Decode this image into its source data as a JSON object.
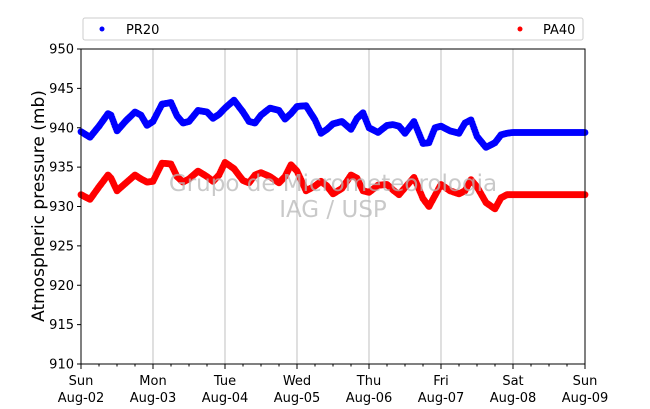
{
  "chart_data": {
    "type": "scatter",
    "ylabel": "Atmospheric pressure (mb)",
    "ylim": [
      910,
      950
    ],
    "y_ticks": [
      910,
      915,
      920,
      925,
      930,
      935,
      940,
      945,
      950
    ],
    "x_range_hours": [
      0,
      168
    ],
    "x_ticks": [
      {
        "day": "Sun",
        "date": "Aug-02"
      },
      {
        "day": "Mon",
        "date": "Aug-03"
      },
      {
        "day": "Tue",
        "date": "Aug-04"
      },
      {
        "day": "Wed",
        "date": "Aug-05"
      },
      {
        "day": "Thu",
        "date": "Aug-06"
      },
      {
        "day": "Fri",
        "date": "Aug-07"
      },
      {
        "day": "Sat",
        "date": "Aug-08"
      },
      {
        "day": "Sun",
        "date": "Aug-09"
      }
    ],
    "grid": "vertical",
    "legend_position": "top",
    "watermark": [
      "Grupo de Micrometeorologia",
      "IAG / USP"
    ],
    "series": [
      {
        "name": "PR20",
        "color": "#0000ff",
        "x": [
          0,
          3,
          6,
          9,
          10,
          12,
          15,
          18,
          20,
          22,
          24,
          27,
          30,
          32,
          34,
          36,
          39,
          42,
          44,
          46,
          48,
          51,
          54,
          56,
          58,
          60,
          63,
          66,
          68,
          70,
          72,
          75,
          78,
          80,
          82,
          84,
          87,
          90,
          92,
          94,
          96,
          99,
          102,
          104,
          106,
          108,
          111,
          114,
          116,
          118,
          120,
          123,
          126,
          128,
          130,
          132,
          135,
          138,
          140,
          142,
          144,
          147,
          150,
          152,
          154,
          156,
          159,
          162,
          164,
          166,
          168
        ],
        "values": [
          939.5,
          938.8,
          940.2,
          941.8,
          941.6,
          939.6,
          940.9,
          942.0,
          941.6,
          940.3,
          940.8,
          943.0,
          943.2,
          941.5,
          940.6,
          940.8,
          942.2,
          942.0,
          941.2,
          941.7,
          942.5,
          943.5,
          942.0,
          940.8,
          940.6,
          941.6,
          942.5,
          942.2,
          941.1,
          941.8,
          942.7,
          942.8,
          941.0,
          939.3,
          939.8,
          940.5,
          940.8,
          939.8,
          941.2,
          941.9,
          940.0,
          939.4,
          940.3,
          940.4,
          940.2,
          939.3,
          940.8,
          938.0,
          938.1,
          940.0,
          940.2,
          939.6,
          939.3,
          940.6,
          941.0,
          938.9,
          937.5,
          938.1,
          939.1,
          939.3,
          939.4,
          939.4,
          939.4,
          939.4,
          939.4,
          939.4,
          939.4,
          939.4,
          939.4,
          939.4,
          939.4
        ]
      },
      {
        "name": "PA40",
        "color": "#ff0000",
        "x": [
          0,
          3,
          6,
          9,
          10,
          12,
          15,
          18,
          20,
          22,
          24,
          27,
          30,
          32,
          34,
          36,
          39,
          42,
          44,
          46,
          48,
          51,
          54,
          56,
          58,
          60,
          63,
          66,
          68,
          70,
          72,
          75,
          78,
          80,
          82,
          84,
          87,
          90,
          92,
          94,
          96,
          99,
          102,
          104,
          106,
          108,
          111,
          114,
          116,
          118,
          120,
          123,
          126,
          128,
          130,
          132,
          135,
          138,
          140,
          142,
          144,
          147,
          150,
          152,
          154,
          156,
          159,
          162,
          164,
          166,
          168
        ],
        "values": [
          931.5,
          930.9,
          932.5,
          934.0,
          933.6,
          932.0,
          933.0,
          934.0,
          933.5,
          933.1,
          933.2,
          935.5,
          935.4,
          933.8,
          933.1,
          933.5,
          934.5,
          933.8,
          933.2,
          934.0,
          935.6,
          934.8,
          933.3,
          933.0,
          934.0,
          934.3,
          933.8,
          933.0,
          933.8,
          935.3,
          934.5,
          932.0,
          932.6,
          933.2,
          932.6,
          931.6,
          932.3,
          934.0,
          933.6,
          932.0,
          931.8,
          932.7,
          932.8,
          932.1,
          931.5,
          932.4,
          933.7,
          931.0,
          930.0,
          931.4,
          932.8,
          932.0,
          931.6,
          932.0,
          933.4,
          932.5,
          930.5,
          929.7,
          931.1,
          931.5,
          931.5,
          931.5,
          931.5,
          931.5,
          931.5,
          931.5,
          931.5,
          931.5,
          931.5,
          931.5,
          931.5
        ]
      }
    ]
  }
}
